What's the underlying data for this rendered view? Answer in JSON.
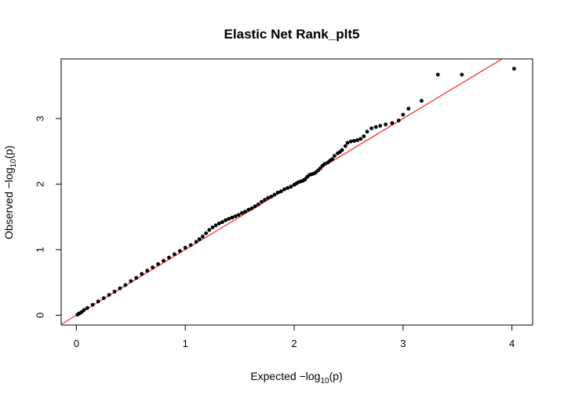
{
  "chart_data": {
    "type": "scatter",
    "title": "Elastic Net Rank_plt5",
    "xlabel": {
      "prefix": "Expected  −log",
      "subscript": "10",
      "suffix": "(p)"
    },
    "ylabel": {
      "prefix": "Observed  −log",
      "subscript": "10",
      "suffix": "(p)"
    },
    "xlim": [
      -0.14,
      4.19
    ],
    "ylim": [
      -0.15,
      3.91
    ],
    "xticks": [
      0,
      1,
      2,
      3,
      4
    ],
    "xtick_labels": [
      "0",
      "1",
      "2",
      "3",
      "4"
    ],
    "yticks": [
      0,
      1,
      2,
      3
    ],
    "ytick_labels": [
      "0",
      "1",
      "2",
      "3"
    ],
    "grid": false,
    "reference_line": {
      "slope": 1,
      "intercept": 0,
      "color": "#ff0000"
    },
    "point_color": "#000000",
    "series": [
      {
        "x": [
          4.02,
          3.54,
          3.32,
          3.17,
          3.05,
          3.0,
          2.96,
          2.9,
          2.84,
          2.79,
          2.75,
          2.71,
          2.67,
          2.64,
          2.61,
          2.58,
          2.55,
          2.52,
          2.49,
          2.47,
          2.44,
          2.42,
          2.4,
          2.37,
          2.35,
          2.33,
          2.31,
          2.28,
          2.26,
          2.24,
          2.22,
          2.2,
          2.18,
          2.16,
          2.14,
          2.12,
          2.1,
          2.08,
          2.06,
          2.04,
          2.02,
          2.0,
          1.97,
          1.94,
          1.91,
          1.88,
          1.85,
          1.82,
          1.79,
          1.76,
          1.73,
          1.7,
          1.67,
          1.64,
          1.61,
          1.58,
          1.55,
          1.52,
          1.49,
          1.46,
          1.43,
          1.4,
          1.37,
          1.34,
          1.31,
          1.28,
          1.25,
          1.22,
          1.19,
          1.16,
          1.13,
          1.1,
          1.05,
          1.0,
          0.95,
          0.9,
          0.85,
          0.8,
          0.75,
          0.7,
          0.65,
          0.6,
          0.55,
          0.5,
          0.45,
          0.4,
          0.35,
          0.3,
          0.25,
          0.2,
          0.15,
          0.1,
          0.07,
          0.05,
          0.03,
          0.02,
          0.01
        ],
        "y": [
          3.76,
          3.67,
          3.67,
          3.27,
          3.15,
          3.06,
          2.97,
          2.93,
          2.91,
          2.89,
          2.87,
          2.85,
          2.8,
          2.73,
          2.69,
          2.67,
          2.66,
          2.65,
          2.63,
          2.58,
          2.52,
          2.49,
          2.47,
          2.43,
          2.38,
          2.36,
          2.33,
          2.31,
          2.28,
          2.24,
          2.21,
          2.18,
          2.16,
          2.15,
          2.14,
          2.11,
          2.07,
          2.05,
          2.04,
          2.03,
          2.01,
          1.99,
          1.96,
          1.94,
          1.92,
          1.89,
          1.87,
          1.84,
          1.81,
          1.79,
          1.76,
          1.73,
          1.69,
          1.66,
          1.63,
          1.61,
          1.58,
          1.56,
          1.53,
          1.51,
          1.49,
          1.47,
          1.45,
          1.42,
          1.4,
          1.37,
          1.34,
          1.3,
          1.25,
          1.2,
          1.16,
          1.12,
          1.07,
          1.03,
          0.98,
          0.93,
          0.88,
          0.83,
          0.78,
          0.73,
          0.68,
          0.63,
          0.57,
          0.52,
          0.46,
          0.41,
          0.36,
          0.31,
          0.26,
          0.21,
          0.16,
          0.11,
          0.08,
          0.05,
          0.03,
          0.02,
          0.01
        ]
      }
    ]
  }
}
